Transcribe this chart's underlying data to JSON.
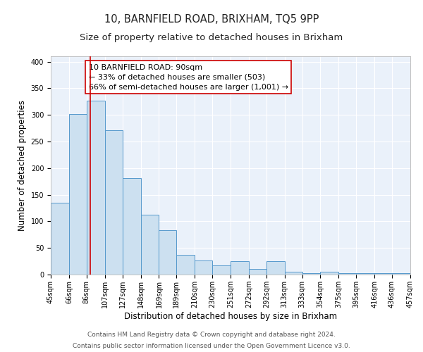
{
  "title": "10, BARNFIELD ROAD, BRIXHAM, TQ5 9PP",
  "subtitle": "Size of property relative to detached houses in Brixham",
  "xlabel": "Distribution of detached houses by size in Brixham",
  "ylabel": "Number of detached properties",
  "bar_edges": [
    45,
    66,
    86,
    107,
    127,
    148,
    169,
    189,
    210,
    230,
    251,
    272,
    292,
    313,
    333,
    354,
    375,
    395,
    416,
    436,
    457
  ],
  "bar_heights": [
    135,
    302,
    327,
    271,
    181,
    113,
    83,
    37,
    27,
    17,
    25,
    10,
    25,
    5,
    2,
    5,
    2,
    3,
    2,
    3
  ],
  "bar_face_color": "#cce0f0",
  "bar_edge_color": "#5599cc",
  "property_line_x": 90,
  "property_line_color": "#cc0000",
  "annotation_text": "10 BARNFIELD ROAD: 90sqm\n← 33% of detached houses are smaller (503)\n66% of semi-detached houses are larger (1,001) →",
  "annotation_box_color": "#ffffff",
  "annotation_box_edge_color": "#cc0000",
  "ylim": [
    0,
    410
  ],
  "xlim": [
    45,
    457
  ],
  "tick_labels": [
    "45sqm",
    "66sqm",
    "86sqm",
    "107sqm",
    "127sqm",
    "148sqm",
    "169sqm",
    "189sqm",
    "210sqm",
    "230sqm",
    "251sqm",
    "272sqm",
    "292sqm",
    "313sqm",
    "333sqm",
    "354sqm",
    "375sqm",
    "395sqm",
    "416sqm",
    "436sqm",
    "457sqm"
  ],
  "footer_line1": "Contains HM Land Registry data © Crown copyright and database right 2024.",
  "footer_line2": "Contains public sector information licensed under the Open Government Licence v3.0.",
  "background_color": "#eaf1fa",
  "fig_background_color": "#ffffff",
  "title_fontsize": 10.5,
  "subtitle_fontsize": 9.5,
  "ylabel_fontsize": 8.5,
  "xlabel_fontsize": 8.5,
  "tick_fontsize": 7,
  "annotation_fontsize": 8,
  "footer_fontsize": 6.5
}
